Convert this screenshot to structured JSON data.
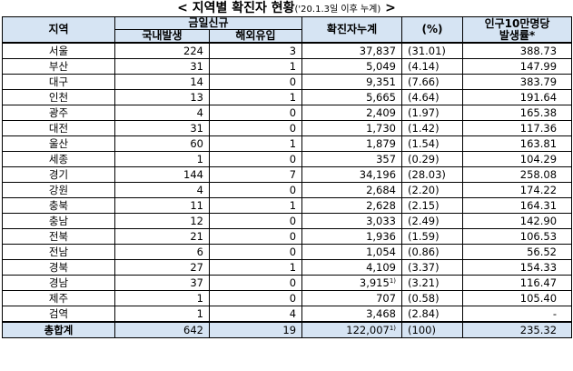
{
  "title": {
    "main": "< 지역별 확진자 현황",
    "sub": "('20.1.3일 이후 누계)",
    "end": " >"
  },
  "headers": {
    "region": "지역",
    "new_today": "금일신규",
    "domestic": "국내발생",
    "imported": "해외유입",
    "cumulative": "확진자누계",
    "percent": "(%)",
    "rate_line1": "인구10만명당",
    "rate_line2": "발생률*"
  },
  "rows": [
    {
      "region": "서울",
      "domestic": "224",
      "imported": "3",
      "cumulative": "37,837",
      "sup": "",
      "percent": "(31.01)",
      "rate": "388.73"
    },
    {
      "region": "부산",
      "domestic": "31",
      "imported": "1",
      "cumulative": "5,049",
      "sup": "",
      "percent": "(4.14)",
      "rate": "147.99"
    },
    {
      "region": "대구",
      "domestic": "14",
      "imported": "0",
      "cumulative": "9,351",
      "sup": "",
      "percent": "(7.66)",
      "rate": "383.79"
    },
    {
      "region": "인천",
      "domestic": "13",
      "imported": "1",
      "cumulative": "5,665",
      "sup": "",
      "percent": "(4.64)",
      "rate": "191.64"
    },
    {
      "region": "광주",
      "domestic": "4",
      "imported": "0",
      "cumulative": "2,409",
      "sup": "",
      "percent": "(1.97)",
      "rate": "165.38"
    },
    {
      "region": "대전",
      "domestic": "31",
      "imported": "0",
      "cumulative": "1,730",
      "sup": "",
      "percent": "(1.42)",
      "rate": "117.36"
    },
    {
      "region": "울산",
      "domestic": "60",
      "imported": "1",
      "cumulative": "1,879",
      "sup": "",
      "percent": "(1.54)",
      "rate": "163.81"
    },
    {
      "region": "세종",
      "domestic": "1",
      "imported": "0",
      "cumulative": "357",
      "sup": "",
      "percent": "(0.29)",
      "rate": "104.29"
    },
    {
      "region": "경기",
      "domestic": "144",
      "imported": "7",
      "cumulative": "34,196",
      "sup": "",
      "percent": "(28.03)",
      "rate": "258.08"
    },
    {
      "region": "강원",
      "domestic": "4",
      "imported": "0",
      "cumulative": "2,684",
      "sup": "",
      "percent": "(2.20)",
      "rate": "174.22"
    },
    {
      "region": "충북",
      "domestic": "11",
      "imported": "1",
      "cumulative": "2,628",
      "sup": "",
      "percent": "(2.15)",
      "rate": "164.31"
    },
    {
      "region": "충남",
      "domestic": "12",
      "imported": "0",
      "cumulative": "3,033",
      "sup": "",
      "percent": "(2.49)",
      "rate": "142.90"
    },
    {
      "region": "전북",
      "domestic": "21",
      "imported": "0",
      "cumulative": "1,936",
      "sup": "",
      "percent": "(1.59)",
      "rate": "106.53"
    },
    {
      "region": "전남",
      "domestic": "6",
      "imported": "0",
      "cumulative": "1,054",
      "sup": "",
      "percent": "(0.86)",
      "rate": "56.52"
    },
    {
      "region": "경북",
      "domestic": "27",
      "imported": "1",
      "cumulative": "4,109",
      "sup": "",
      "percent": "(3.37)",
      "rate": "154.33"
    },
    {
      "region": "경남",
      "domestic": "37",
      "imported": "0",
      "cumulative": "3,915",
      "sup": "1)",
      "percent": "(3.21)",
      "rate": "116.47"
    },
    {
      "region": "제주",
      "domestic": "1",
      "imported": "0",
      "cumulative": "707",
      "sup": "",
      "percent": "(0.58)",
      "rate": "105.40"
    },
    {
      "region": "검역",
      "domestic": "1",
      "imported": "4",
      "cumulative": "3,468",
      "sup": "",
      "percent": "(2.84)",
      "rate": "-"
    }
  ],
  "total": {
    "region": "총합계",
    "domestic": "642",
    "imported": "19",
    "cumulative": "122,007",
    "sup": "1)",
    "percent": "(100)",
    "rate": "235.32"
  },
  "colors": {
    "header_bg": "#d6e4f3",
    "border": "#000000"
  }
}
